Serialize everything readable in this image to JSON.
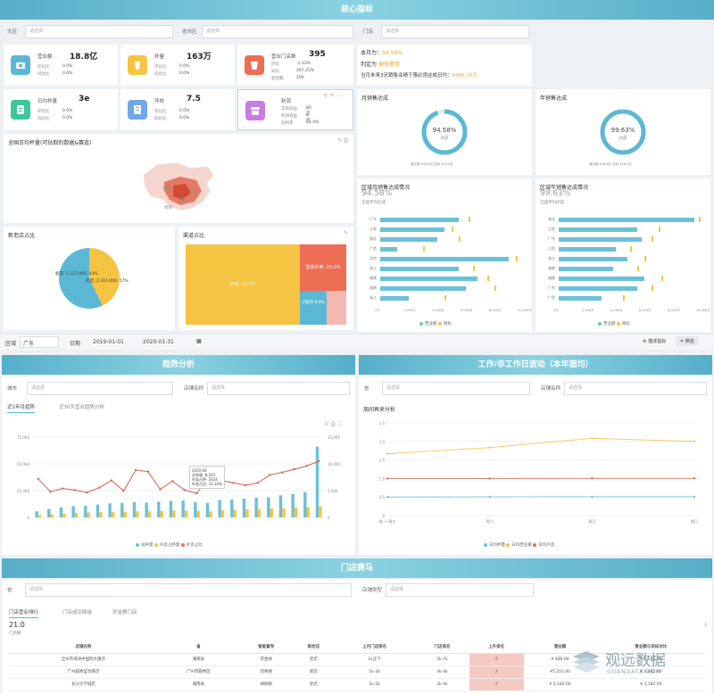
{
  "sections": {
    "core": "核心指标",
    "trend": "趋势分析",
    "workday": "工作/非工作日波动（本年面均）",
    "race": "门店赛马"
  },
  "filters_top": [
    {
      "label": "大区",
      "placeholder": "请选择"
    },
    {
      "label": "省市区",
      "placeholder": "请选择"
    },
    {
      "label": "门店",
      "placeholder": "请选择"
    }
  ],
  "kpis": [
    {
      "title": "营业额",
      "value": "18.8亿",
      "color": "#5bb8d4",
      "icon": "money-icon",
      "rows": [
        {
          "k": "环比比",
          "v": "0.0%"
        },
        {
          "k": "同比比",
          "v": "0.0%"
        }
      ]
    },
    {
      "title": "杯量",
      "value": "163万",
      "color": "#f6c443",
      "icon": "cup-icon",
      "rows": [
        {
          "k": "环比比",
          "v": "0.0%"
        },
        {
          "k": "同比比",
          "v": "0.0%"
        }
      ]
    },
    {
      "title": "营业门店数",
      "value": "395",
      "color": "#ee6e55",
      "icon": "drink-icon",
      "rows": [
        {
          "k": "环比",
          "v": "-1.33%"
        },
        {
          "k": "同比",
          "v": "267.25%"
        },
        {
          "k": "新店数",
          "v": "200"
        }
      ]
    },
    {
      "title": "日均杯量",
      "value": "3e",
      "color": "#3ac79a",
      "icon": "receipt-icon",
      "rows": [
        {
          "k": "环比比",
          "v": "0.0%"
        },
        {
          "k": "同比比",
          "v": "0.0%"
        }
      ]
    },
    {
      "title": "坪效",
      "value": "7.5",
      "color": "#6fa8e8",
      "icon": "doc-icon",
      "rows": [
        {
          "k": "环比比",
          "v": "0.0%"
        },
        {
          "k": "同比比",
          "v": "0.0%"
        }
      ]
    },
    {
      "title": "利润",
      "value": "",
      "color": "#c77ce0",
      "icon": "store-icon",
      "rows": [
        {
          "k": "实际效益",
          "v": "80万"
        },
        {
          "k": "利润效益",
          "v": "8万"
        },
        {
          "k": "毛利率",
          "v": "62.4%"
        }
      ]
    }
  ],
  "summary": {
    "l1_label": "本月为：",
    "l1_value": "94.58%",
    "l2_label": "判定为",
    "l2_value": "偏低警情",
    "l3_label": "当月未来3天销售业绩下限必须达成日均：",
    "l3_value": "¥496.18万"
  },
  "map": {
    "title": "全国日均杯量(可钻取的数据&赛道)",
    "labels": [
      "成都",
      "武汉",
      "长沙",
      "贵阳"
    ]
  },
  "gauges": [
    {
      "title": "月销售达成",
      "value": 94.58,
      "label": "94.58%",
      "sub": "达成",
      "foot": "营业额 ¥18.8亿 目标 ¥19.9亿"
    },
    {
      "title": "年销售达成",
      "value": 99.63,
      "label": "99.63%",
      "sub": "达成",
      "foot": "营业额 ¥18.8亿 目标 ¥18.9亿"
    }
  ],
  "pie": {
    "title": "新老店占比",
    "slices": [
      {
        "name": "新店",
        "value": 1727000,
        "label": "新店: 1,727,000, 43%",
        "color": "#f6c443"
      },
      {
        "name": "老店",
        "value": 2311000,
        "label": "老店: 2,311,000, 57%",
        "color": "#5bb8d4"
      }
    ]
  },
  "treemap": {
    "title": "渠道占比",
    "blocks": [
      {
        "label": "外卖, 71.7%",
        "value": 71.7,
        "color": "#f6c443"
      },
      {
        "label": "堂食外卖, 15.0%",
        "value": 15.0,
        "color": "#ee6e55"
      },
      {
        "label": "小程序 8.8%",
        "value": 8.8,
        "color": "#5bb8d4"
      },
      {
        "label": "",
        "value": 4.5,
        "color": "#f5b8b0"
      }
    ]
  },
  "month_region": {
    "title": "区域月销售达成情况",
    "value": "94.58%",
    "sub": "全国平均达成",
    "rows": [
      {
        "name": "广东",
        "v": 0.55,
        "t": 0.62
      },
      {
        "name": "江苏",
        "v": 0.45,
        "t": 0.5
      },
      {
        "name": "湖北",
        "v": 0.4,
        "t": 0.55
      },
      {
        "name": "广西",
        "v": 0.12,
        "t": 0.3
      },
      {
        "name": "北京",
        "v": 0.9,
        "t": 0.95
      },
      {
        "name": "浙江",
        "v": 0.55,
        "t": 0.65
      },
      {
        "name": "福建",
        "v": 0.68,
        "t": 0.75
      },
      {
        "name": "湖南",
        "v": 0.6,
        "t": 0.8
      },
      {
        "name": "浙江",
        "v": 0.2,
        "t": 0.45
      }
    ],
    "ticks": [
      "0万",
      "2,000万",
      "4,000万",
      "6,000万",
      "8,000万",
      "10,000万"
    ],
    "legend": [
      "营业额",
      "目标"
    ]
  },
  "year_region": {
    "title": "区域年销售达成情况",
    "value": "99.63%",
    "sub": "全国平均达成",
    "rows": [
      {
        "name": "湖北",
        "v": 0.95,
        "t": 0.98
      },
      {
        "name": "江西",
        "v": 0.55,
        "t": 0.7
      },
      {
        "name": "广东",
        "v": 0.58,
        "t": 0.65
      },
      {
        "name": "江西",
        "v": 0.4,
        "t": 0.5
      },
      {
        "name": "浙江",
        "v": 0.48,
        "t": 0.6
      },
      {
        "name": "湖南",
        "v": 0.38,
        "t": 0.55
      },
      {
        "name": "福建",
        "v": 0.6,
        "t": 0.72
      },
      {
        "name": "广东",
        "v": 0.55,
        "t": 0.65
      },
      {
        "name": "广西",
        "v": 0.3,
        "t": 0.45
      }
    ],
    "ticks": [
      "0万",
      "2,000万",
      "4,000万",
      "6,000万",
      "8,000万",
      "10,000万"
    ],
    "legend": [
      "营业额",
      "目标"
    ]
  },
  "toolbar": {
    "region_label": "区域",
    "region_value": "广东",
    "date_label": "日期",
    "date_from": "2019-01-01",
    "date_to": "2020-01-31",
    "btn_desc": "描述指标",
    "btn_filter": "筛选"
  },
  "trend": {
    "f1": "城市",
    "f1p": "请选择",
    "f2": "店铺名称",
    "f2p": "请选择",
    "tabs": [
      "近1年月趋势",
      "近30天营业趋势分析"
    ],
    "legend": [
      "总杯量",
      "外卖占杯量",
      "外卖占比"
    ],
    "tooltip": [
      "2020-04",
      "总杯量: 8,203",
      "外卖占杯: 1024",
      "外卖占比: 12.10%"
    ],
    "yl": [
      "75,000",
      "50,000",
      "25,000",
      "0"
    ],
    "yr": [
      "15,000",
      "10,000",
      "5,000",
      "0"
    ]
  },
  "chart_data": [
    {
      "type": "bar",
      "title": "近1年月趋势",
      "series": [
        {
          "name": "总杯量",
          "values": [
            1.5,
            2.1,
            2.5,
            2.8,
            2.9,
            3.2,
            3.5,
            3.6,
            3.8,
            3.7,
            3.9,
            4.1,
            4.2,
            3.8,
            3.6,
            4.3,
            4.5,
            4.7,
            4.9,
            5.0,
            5.5,
            5.8,
            6.3,
            17.6
          ]
        },
        {
          "name": "外卖占杯量",
          "values": [
            0.6,
            0.8,
            1.0,
            1.1,
            1.2,
            1.3,
            1.3,
            1.4,
            1.5,
            1.5,
            1.6,
            1.7,
            1.7,
            1.6,
            1.5,
            1.8,
            1.9,
            2.0,
            2.1,
            2.2,
            2.3,
            2.5,
            2.6,
            2.8
          ]
        },
        {
          "name": "外卖占比",
          "values": [
            10.8,
            9.2,
            9.6,
            9.4,
            9.1,
            9.7,
            10.6,
            9.3,
            11.9,
            11.7,
            9.5,
            10.5,
            9.4,
            9.0,
            11.1,
            10.6,
            10.3,
            10.0,
            10.3,
            11.3,
            11.6,
            12.0,
            12.4,
            13.0
          ]
        }
      ],
      "ylim": [
        0,
        75000
      ]
    },
    {
      "type": "line",
      "title": "周间再来分析",
      "categories": [
        "周一~周五",
        "周六",
        "周日",
        "假日"
      ],
      "series": [
        {
          "name": "日均杯量",
          "values": [
            120,
            121,
            122,
            122
          ]
        },
        {
          "name": "日均营业额",
          "values": [
            400,
            440,
            500,
            480
          ]
        },
        {
          "name": "日均外卖",
          "values": [
            240,
            240,
            241,
            241
          ]
        }
      ],
      "ylim": [
        0,
        600
      ]
    }
  ],
  "workday": {
    "f1": "省",
    "f1p": "请选择",
    "f2": "店铺名称",
    "f2p": "请选择",
    "chart_title": "周间再来分析",
    "yl": [
      "2.5",
      "2.0",
      "1.5",
      "1.0",
      "0.5",
      "0"
    ],
    "legend": [
      "日均杯量",
      "日均营业额",
      "日均外卖"
    ]
  },
  "race": {
    "f1": "省",
    "f1p": "请选择",
    "f2": "店铺类型",
    "f2p": "请选择",
    "tabs": [
      "门店营业排行",
      "门店成交降级",
      "奖金赛门店"
    ],
    "count": "21.0",
    "count_label": "门店数",
    "headers": [
      "店铺名称",
      "省",
      "智能督导",
      "新老店",
      "上月门店排名",
      "门店排名",
      "上升排名",
      "营业额",
      "营业额与目标对比"
    ],
    "rows": [
      [
        "全州市海洋中国际大厦店",
        "湖南省",
        "李金帅",
        "老店",
        "1k正下",
        "2k-7k",
        "2",
        "¥ 486.00",
        "¥ 3,586.00"
      ],
      [
        "广州越秀蓝亭路店",
        "广州市越秀区",
        "何秀刚",
        "新店",
        "1k-2k",
        "3k-4k",
        "2",
        "¥5,221.00",
        "¥ 5,882.00"
      ],
      [
        "长沙大学城店",
        "湖南省",
        "胡刚刚",
        "老店",
        "1k-2k",
        "3k-4k",
        "2",
        "¥ 3,182.00",
        "¥ 3,182.00"
      ]
    ]
  },
  "watermark": {
    "cn": "观远数据",
    "en": "GUANDATA.COM"
  }
}
